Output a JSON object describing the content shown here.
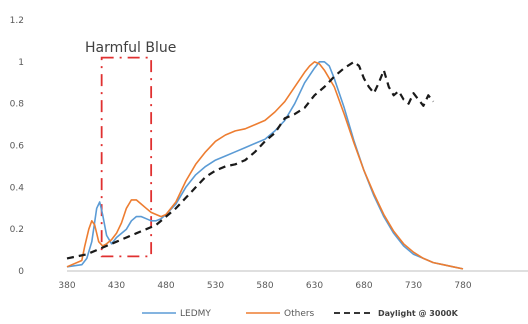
{
  "chart_data": {
    "type": "line",
    "title": "",
    "xlabel": "",
    "ylabel": "",
    "xlim": [
      380,
      780
    ],
    "ylim": [
      0,
      1.2
    ],
    "x_ticks": [
      "380",
      "430",
      "480",
      "530",
      "580",
      "630",
      "680",
      "730",
      "780"
    ],
    "y_ticks": [
      "0",
      "0.2",
      "0.4",
      "0.6",
      "0.8",
      "1",
      "1.2"
    ],
    "grid": false,
    "legend_position": "bottom",
    "annotation": {
      "text": "Harmful Blue",
      "box_x_range": [
        415,
        465
      ],
      "box_y_range": [
        0.07,
        1.02
      ],
      "color": "#e03030"
    },
    "series": [
      {
        "name": "LEDMY",
        "color": "#5b9bd5",
        "dash": "solid",
        "x": [
          380,
          395,
          400,
          405,
          410,
          413,
          416,
          420,
          425,
          430,
          440,
          445,
          450,
          455,
          460,
          465,
          470,
          475,
          480,
          490,
          500,
          510,
          520,
          530,
          540,
          550,
          560,
          570,
          580,
          590,
          600,
          610,
          620,
          630,
          635,
          640,
          645,
          650,
          660,
          670,
          680,
          690,
          700,
          710,
          720,
          730,
          740,
          750,
          760,
          770,
          780
        ],
        "y": [
          0.02,
          0.03,
          0.06,
          0.14,
          0.3,
          0.33,
          0.27,
          0.17,
          0.13,
          0.16,
          0.2,
          0.24,
          0.26,
          0.26,
          0.25,
          0.24,
          0.24,
          0.25,
          0.27,
          0.32,
          0.4,
          0.46,
          0.5,
          0.53,
          0.55,
          0.57,
          0.59,
          0.61,
          0.63,
          0.67,
          0.72,
          0.8,
          0.9,
          0.97,
          1.0,
          1.0,
          0.98,
          0.92,
          0.78,
          0.62,
          0.48,
          0.36,
          0.26,
          0.18,
          0.12,
          0.08,
          0.06,
          0.04,
          0.03,
          0.02,
          0.01
        ]
      },
      {
        "name": "Others",
        "color": "#ed7d31",
        "dash": "solid",
        "x": [
          380,
          395,
          398,
          402,
          405,
          408,
          412,
          416,
          420,
          425,
          430,
          435,
          440,
          445,
          450,
          455,
          460,
          465,
          470,
          475,
          480,
          490,
          500,
          510,
          520,
          530,
          540,
          550,
          560,
          570,
          580,
          590,
          600,
          610,
          620,
          625,
          630,
          635,
          640,
          650,
          660,
          670,
          680,
          690,
          700,
          710,
          720,
          730,
          740,
          750,
          760,
          770,
          780
        ],
        "y": [
          0.02,
          0.05,
          0.12,
          0.2,
          0.24,
          0.22,
          0.14,
          0.12,
          0.13,
          0.15,
          0.18,
          0.23,
          0.3,
          0.34,
          0.34,
          0.32,
          0.3,
          0.28,
          0.27,
          0.26,
          0.27,
          0.33,
          0.43,
          0.51,
          0.57,
          0.62,
          0.65,
          0.67,
          0.68,
          0.7,
          0.72,
          0.76,
          0.81,
          0.88,
          0.95,
          0.98,
          1.0,
          0.99,
          0.96,
          0.88,
          0.75,
          0.61,
          0.48,
          0.37,
          0.27,
          0.19,
          0.13,
          0.09,
          0.06,
          0.04,
          0.03,
          0.02,
          0.01
        ]
      },
      {
        "name": "Daylight @ 3000K",
        "color": "#1a1a1a",
        "dash": "dashed",
        "x": [
          380,
          390,
          400,
          410,
          420,
          430,
          440,
          450,
          460,
          470,
          480,
          490,
          500,
          510,
          520,
          530,
          540,
          550,
          560,
          570,
          580,
          590,
          600,
          610,
          620,
          630,
          640,
          650,
          660,
          670,
          675,
          680,
          685,
          690,
          695,
          700,
          705,
          710,
          715,
          720,
          725,
          730,
          735,
          740,
          745,
          750
        ],
        "y": [
          0.06,
          0.07,
          0.08,
          0.1,
          0.12,
          0.14,
          0.16,
          0.18,
          0.2,
          0.22,
          0.26,
          0.3,
          0.35,
          0.4,
          0.45,
          0.48,
          0.5,
          0.51,
          0.53,
          0.57,
          0.62,
          0.66,
          0.73,
          0.75,
          0.78,
          0.84,
          0.88,
          0.93,
          0.97,
          1.0,
          0.98,
          0.92,
          0.88,
          0.85,
          0.9,
          0.96,
          0.88,
          0.84,
          0.86,
          0.82,
          0.8,
          0.85,
          0.82,
          0.79,
          0.84,
          0.81
        ]
      }
    ]
  }
}
